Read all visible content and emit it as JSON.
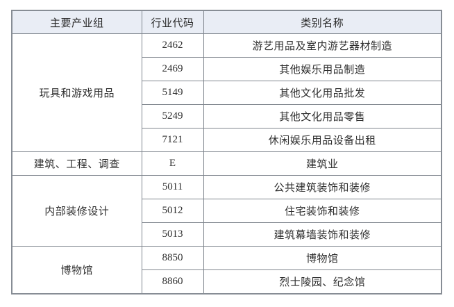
{
  "table": {
    "headers": [
      "主要产业组",
      "行业代码",
      "类别名称"
    ],
    "groups": [
      {
        "name": "玩具和游戏用品",
        "rows": [
          [
            "2462",
            "游艺用品及室内游艺器材制造"
          ],
          [
            "2469",
            "其他娱乐用品制造"
          ],
          [
            "5149",
            "其他文化用品批发"
          ],
          [
            "5249",
            "其他文化用品零售"
          ],
          [
            "7121",
            "休闲娱乐用品设备出租"
          ]
        ]
      },
      {
        "name": "建筑、工程、调查",
        "rows": [
          [
            "E",
            "建筑业"
          ]
        ]
      },
      {
        "name": "内部装修设计",
        "rows": [
          [
            "5011",
            "公共建筑装饰和装修"
          ],
          [
            "5012",
            "住宅装饰和装修"
          ],
          [
            "5013",
            "建筑幕墙装饰和装修"
          ]
        ]
      },
      {
        "name": "博物馆",
        "rows": [
          [
            "8850",
            "博物馆"
          ],
          [
            "8860",
            "烈士陵园、纪念馆"
          ]
        ]
      }
    ],
    "colors": {
      "header_bg": "#e9edf5",
      "border": "#80868e",
      "outer_border": "#878d95",
      "text": "#2f2f2f"
    }
  }
}
